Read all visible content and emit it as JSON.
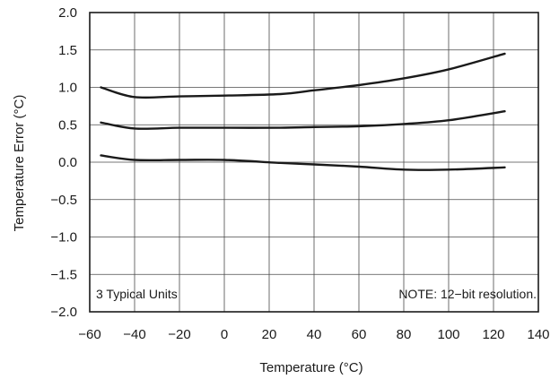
{
  "chart_data": {
    "type": "line",
    "xlabel": "Temperature (°C)",
    "ylabel": "Temperature Error (°C)",
    "xlim": [
      -60,
      140
    ],
    "ylim": [
      -2.0,
      2.0
    ],
    "x_ticks": [
      -60,
      -40,
      -20,
      0,
      20,
      40,
      60,
      80,
      100,
      120,
      140
    ],
    "y_ticks": [
      2.0,
      1.5,
      1.0,
      0.5,
      0.0,
      -0.5,
      -1.0,
      -1.5,
      -2.0
    ],
    "x_tick_labels": [
      "−60",
      "−40",
      "−20",
      "0",
      "20",
      "40",
      "60",
      "80",
      "100",
      "120",
      "140"
    ],
    "y_tick_labels": [
      "2.0",
      "1.5",
      "1.0",
      "0.5",
      "0.0",
      "−0.5",
      "−1.0",
      "−1.5",
      "−2.0"
    ],
    "grid": true,
    "annotations": {
      "left": "3 Typical Units",
      "right": "NOTE: 12−bit resolution."
    },
    "series": [
      {
        "x": [
          -55,
          -40,
          -20,
          0,
          25,
          40,
          60,
          80,
          100,
          125
        ],
        "y": [
          1.0,
          0.87,
          0.88,
          0.89,
          0.91,
          0.96,
          1.03,
          1.12,
          1.24,
          1.45
        ]
      },
      {
        "x": [
          -55,
          -40,
          -20,
          0,
          25,
          40,
          60,
          80,
          100,
          125
        ],
        "y": [
          0.53,
          0.45,
          0.46,
          0.46,
          0.46,
          0.47,
          0.48,
          0.51,
          0.56,
          0.68
        ]
      },
      {
        "x": [
          -55,
          -40,
          -20,
          0,
          25,
          40,
          60,
          80,
          100,
          125
        ],
        "y": [
          0.09,
          0.03,
          0.03,
          0.03,
          -0.01,
          -0.03,
          -0.06,
          -0.1,
          -0.1,
          -0.07
        ]
      }
    ]
  }
}
